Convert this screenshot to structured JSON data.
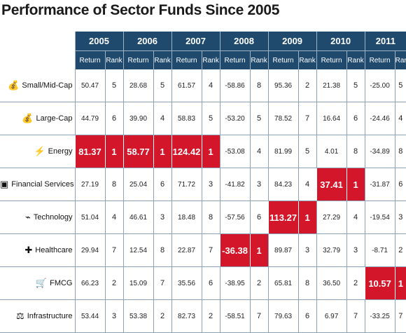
{
  "chart_data": {
    "type": "table",
    "title": "Performance of Sector Funds Since 2005",
    "years": [
      "2005",
      "2006",
      "2007",
      "2008",
      "2009",
      "2010",
      "2011"
    ],
    "subheaders": [
      "Return",
      "Rank"
    ],
    "highlight_color": "#d3162a",
    "header_color": "#1f4a6e",
    "rows": [
      {
        "category": "Small/Mid-Cap",
        "icon": "money-bag-icon",
        "returns": [
          "50.47",
          "28.68",
          "61.57",
          "-58.86",
          "95.36",
          "21.38",
          "-25.00"
        ],
        "ranks": [
          "5",
          "5",
          "4",
          "8",
          "2",
          "5",
          "5"
        ]
      },
      {
        "category": "Large-Cap",
        "icon": "money-bag-icon",
        "returns": [
          "44.79",
          "39.90",
          "58.83",
          "-53.20",
          "78.52",
          "16.64",
          "-24.46"
        ],
        "ranks": [
          "6",
          "4",
          "5",
          "5",
          "7",
          "6",
          "4"
        ]
      },
      {
        "category": "Energy",
        "icon": "lightning-bolt-icon",
        "returns": [
          "81.37",
          "58.77",
          "124.42",
          "-53.08",
          "81.99",
          "4.01",
          "-34.89"
        ],
        "ranks": [
          "1",
          "1",
          "1",
          "4",
          "5",
          "8",
          "8"
        ]
      },
      {
        "category": "Financial Services",
        "icon": "safe-icon",
        "returns": [
          "27.19",
          "25.04",
          "71.72",
          "-41.82",
          "84.23",
          "37.41",
          "-31.87"
        ],
        "ranks": [
          "8",
          "6",
          "3",
          "3",
          "4",
          "1",
          "6"
        ]
      },
      {
        "category": "Technology",
        "icon": "plug-icon",
        "returns": [
          "51.04",
          "46.61",
          "18.48",
          "-57.56",
          "113.27",
          "27.29",
          "-19.54"
        ],
        "ranks": [
          "4",
          "3",
          "8",
          "6",
          "1",
          "4",
          "3"
        ]
      },
      {
        "category": "Healthcare",
        "icon": "medical-kit-icon",
        "returns": [
          "29.94",
          "12.54",
          "22.87",
          "-36.38",
          "89.87",
          "32.79",
          "-8.71"
        ],
        "ranks": [
          "7",
          "8",
          "7",
          "1",
          "3",
          "3",
          "2"
        ]
      },
      {
        "category": "FMCG",
        "icon": "shopping-cart-icon",
        "returns": [
          "66.23",
          "15.09",
          "35.56",
          "-38.95",
          "65.81",
          "36.50",
          "10.57"
        ],
        "ranks": [
          "2",
          "7",
          "6",
          "2",
          "8",
          "2",
          "1"
        ]
      },
      {
        "category": "Infrastructure",
        "icon": "crane-icon",
        "returns": [
          "53.44",
          "53.38",
          "82.73",
          "-58.51",
          "79.63",
          "6.97",
          "-33.25"
        ],
        "ranks": [
          "3",
          "2",
          "2",
          "7",
          "6",
          "7",
          "7"
        ]
      }
    ]
  }
}
